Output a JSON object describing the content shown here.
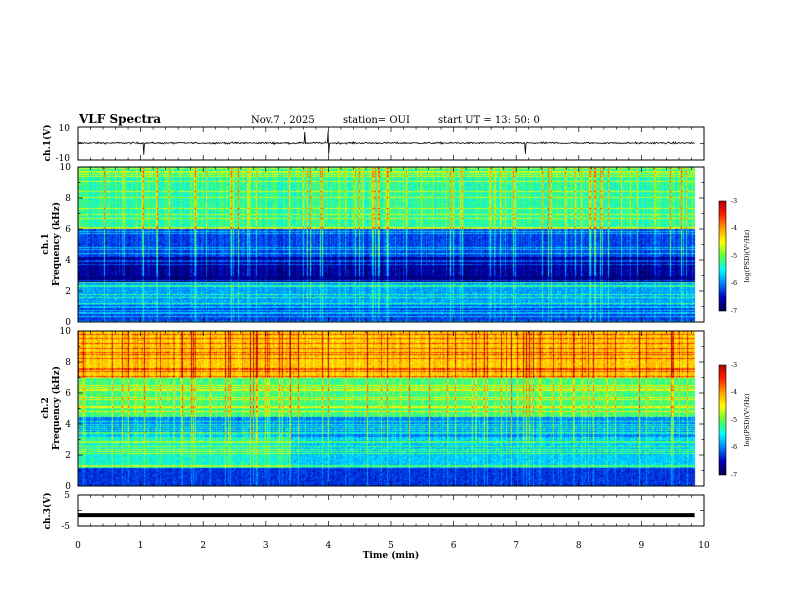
{
  "header": {
    "title": "VLF Spectra",
    "date": "Nov.7 , 2025",
    "station": "station= OUI",
    "start": "start  UT =   13: 50: 0"
  },
  "chart_data": [
    {
      "type": "line",
      "name": "ch1-waveform",
      "ylabel": "ch.1(V)",
      "ylim": [
        -10,
        10
      ],
      "yticks": [
        "10",
        "-10"
      ],
      "xlim": [
        0,
        10
      ],
      "spikes_min": [
        1.05,
        3.62,
        4.0,
        7.15
      ]
    },
    {
      "type": "heatmap",
      "name": "ch1-spectrogram",
      "ylabel_line1": "ch.1",
      "ylabel_line2": "Frequency (kHz)",
      "ylim": [
        0,
        10
      ],
      "yticks": [
        "0",
        "2",
        "4",
        "6",
        "8",
        "10"
      ],
      "xlim": [
        0,
        10
      ],
      "data_end_min": 9.85,
      "color_levels": [
        -7,
        -3
      ]
    },
    {
      "type": "heatmap",
      "name": "ch2-spectrogram",
      "ylabel_line1": "ch.2",
      "ylabel_line2": "Frequency (kHz)",
      "ylim": [
        0,
        10
      ],
      "yticks": [
        "0",
        "2",
        "4",
        "6",
        "8",
        "10"
      ],
      "xlim": [
        0,
        10
      ],
      "data_end_min": 9.85,
      "color_levels": [
        -7,
        -3
      ]
    },
    {
      "type": "line",
      "name": "ch3-waveform",
      "ylabel": "ch.3(V)",
      "ylim": [
        -5,
        5
      ],
      "yticks": [
        "5",
        "-5"
      ],
      "xlim": [
        0,
        10
      ],
      "constant_value": -1.5
    }
  ],
  "xaxis": {
    "label": "Time  (min)",
    "ticks": [
      "0",
      "1",
      "2",
      "3",
      "4",
      "5",
      "6",
      "7",
      "8",
      "9",
      "10"
    ]
  },
  "colorbar": {
    "label": "log(PSD)(V²/Hz)",
    "ticks": [
      "-3",
      "-4",
      "-5",
      "-6",
      "-7"
    ],
    "colors": [
      "#b00000",
      "#ff2000",
      "#ffa000",
      "#ffff00",
      "#60ff40",
      "#00ffff",
      "#0080ff",
      "#0000c0",
      "#000040"
    ]
  }
}
